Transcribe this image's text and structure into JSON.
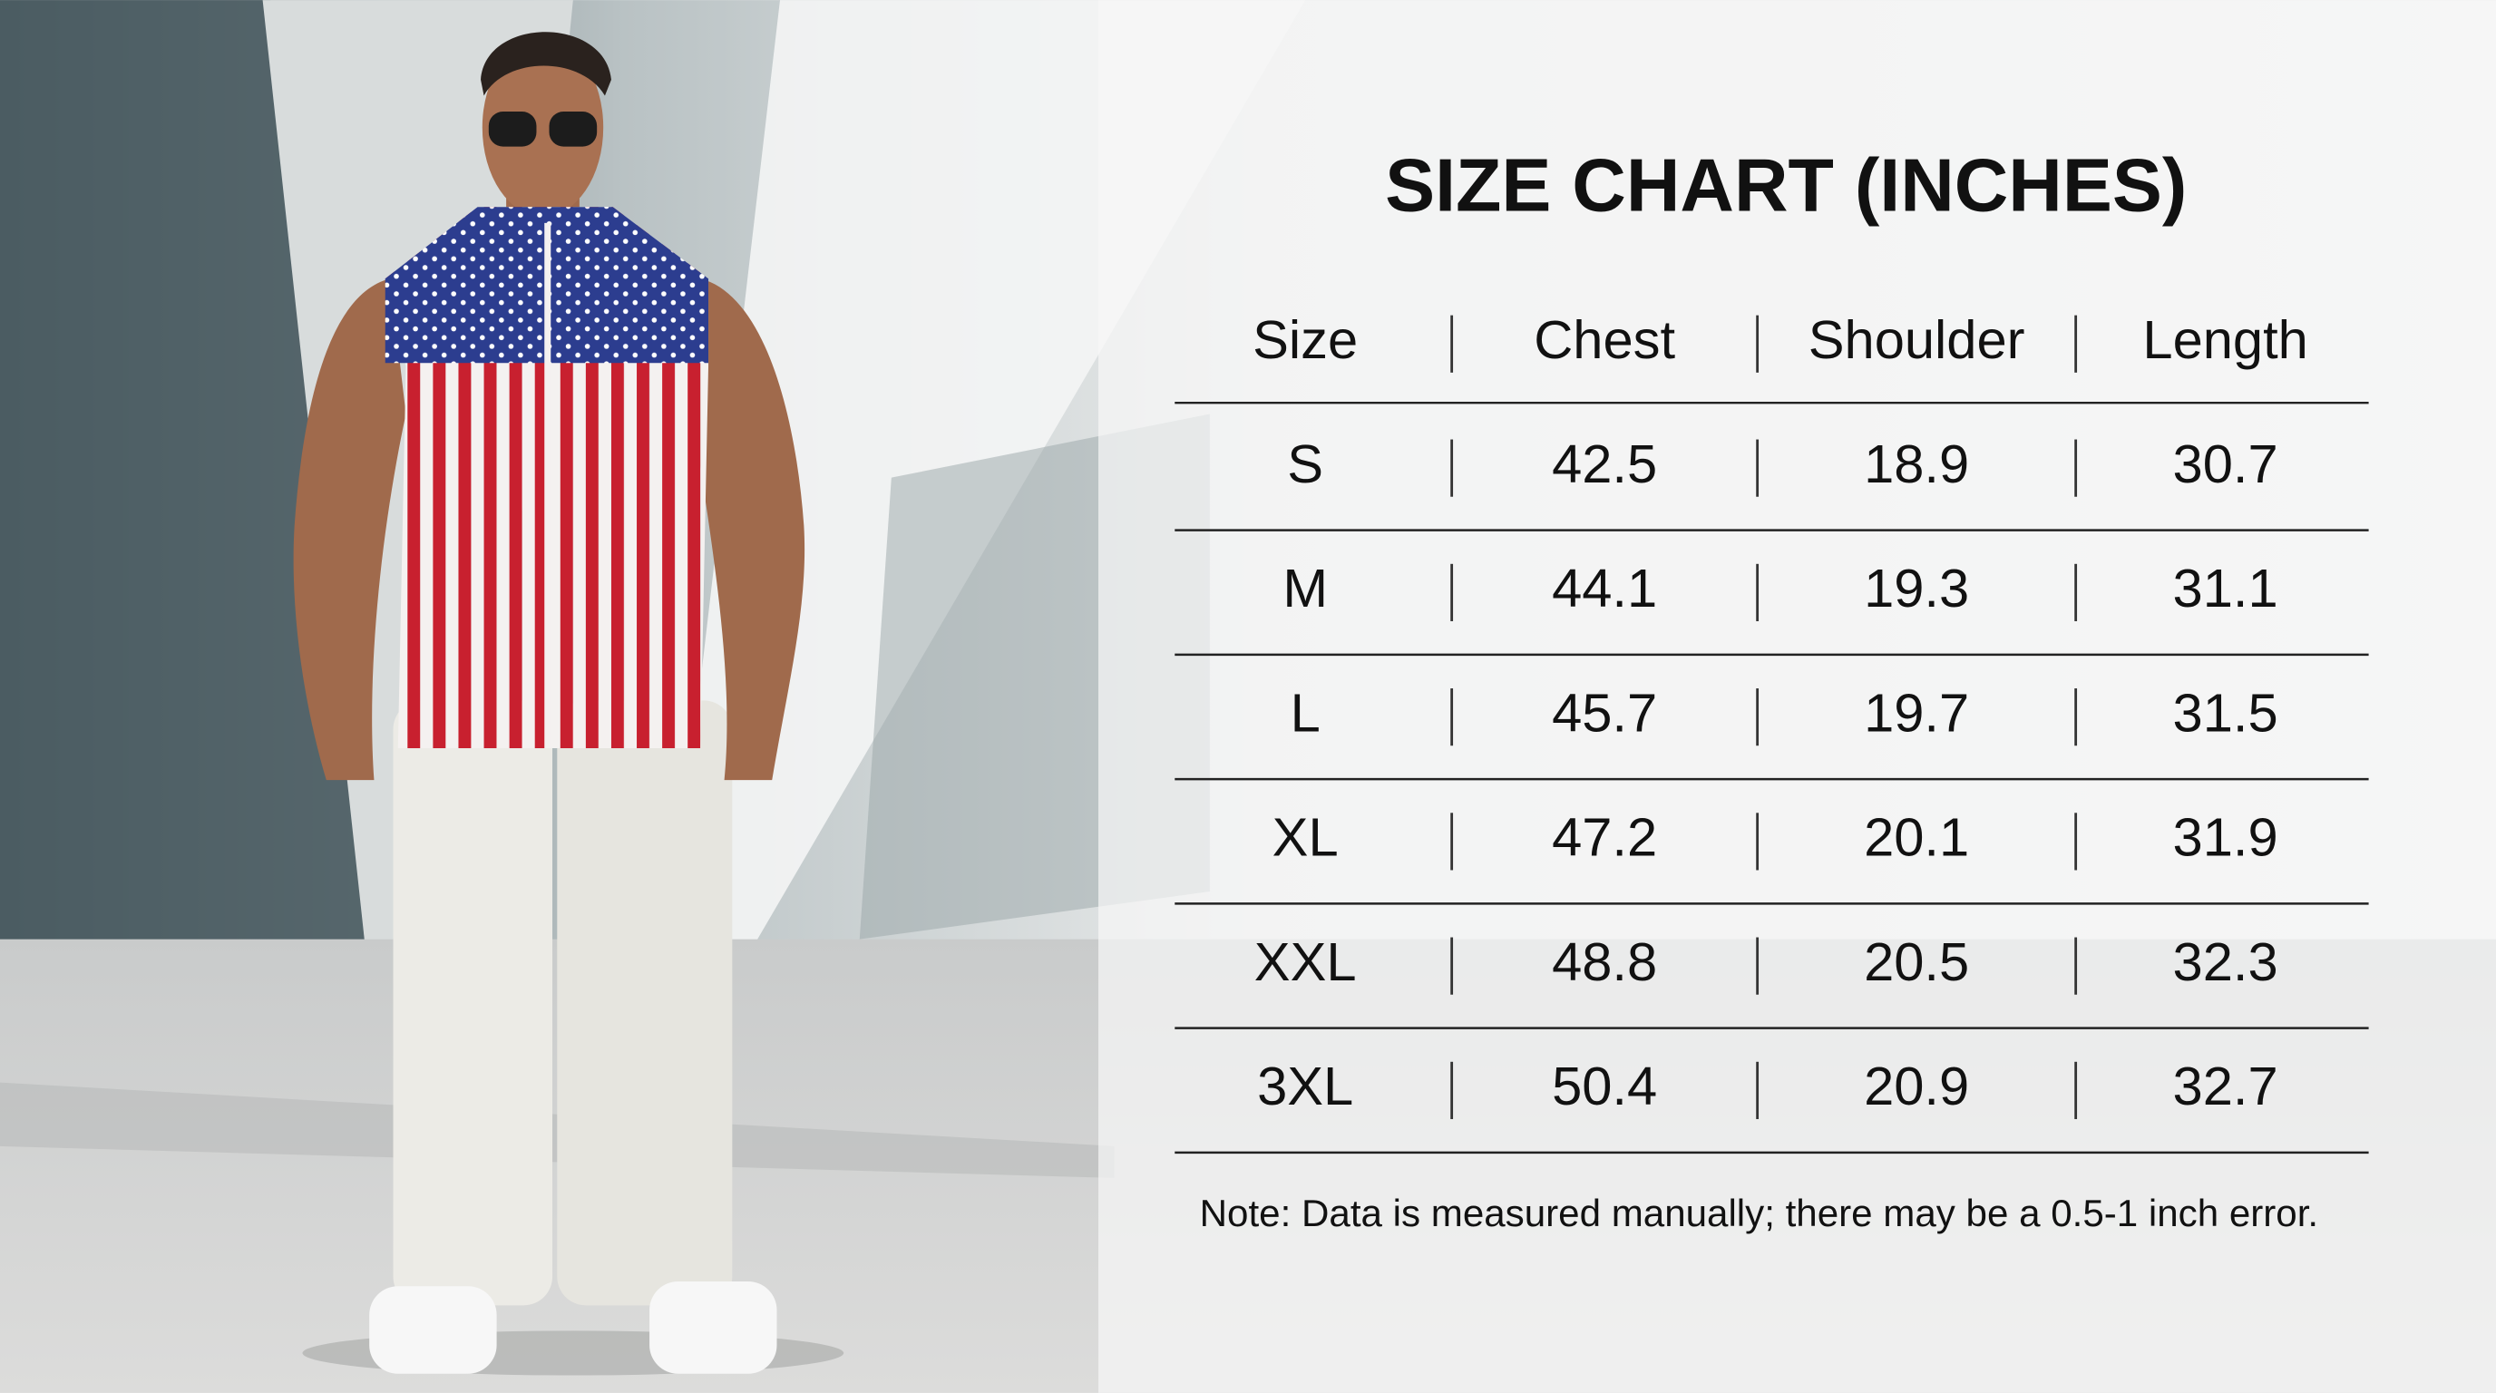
{
  "header": {
    "title": "SIZE CHART (INCHES)"
  },
  "table": {
    "columns": [
      "Size",
      "Chest",
      "Shoulder",
      "Length"
    ],
    "rows": [
      [
        "S",
        42.5,
        18.9,
        30.7
      ],
      [
        "M",
        44.1,
        19.3,
        31.1
      ],
      [
        "L",
        45.7,
        19.7,
        31.5
      ],
      [
        "XL",
        47.2,
        20.1,
        31.9
      ],
      [
        "XXL",
        48.8,
        20.5,
        32.3
      ],
      [
        "3XL",
        50.4,
        20.9,
        32.7
      ]
    ]
  },
  "note": "Note: Data is measured manually; there may be a 0.5-1 inch error."
}
